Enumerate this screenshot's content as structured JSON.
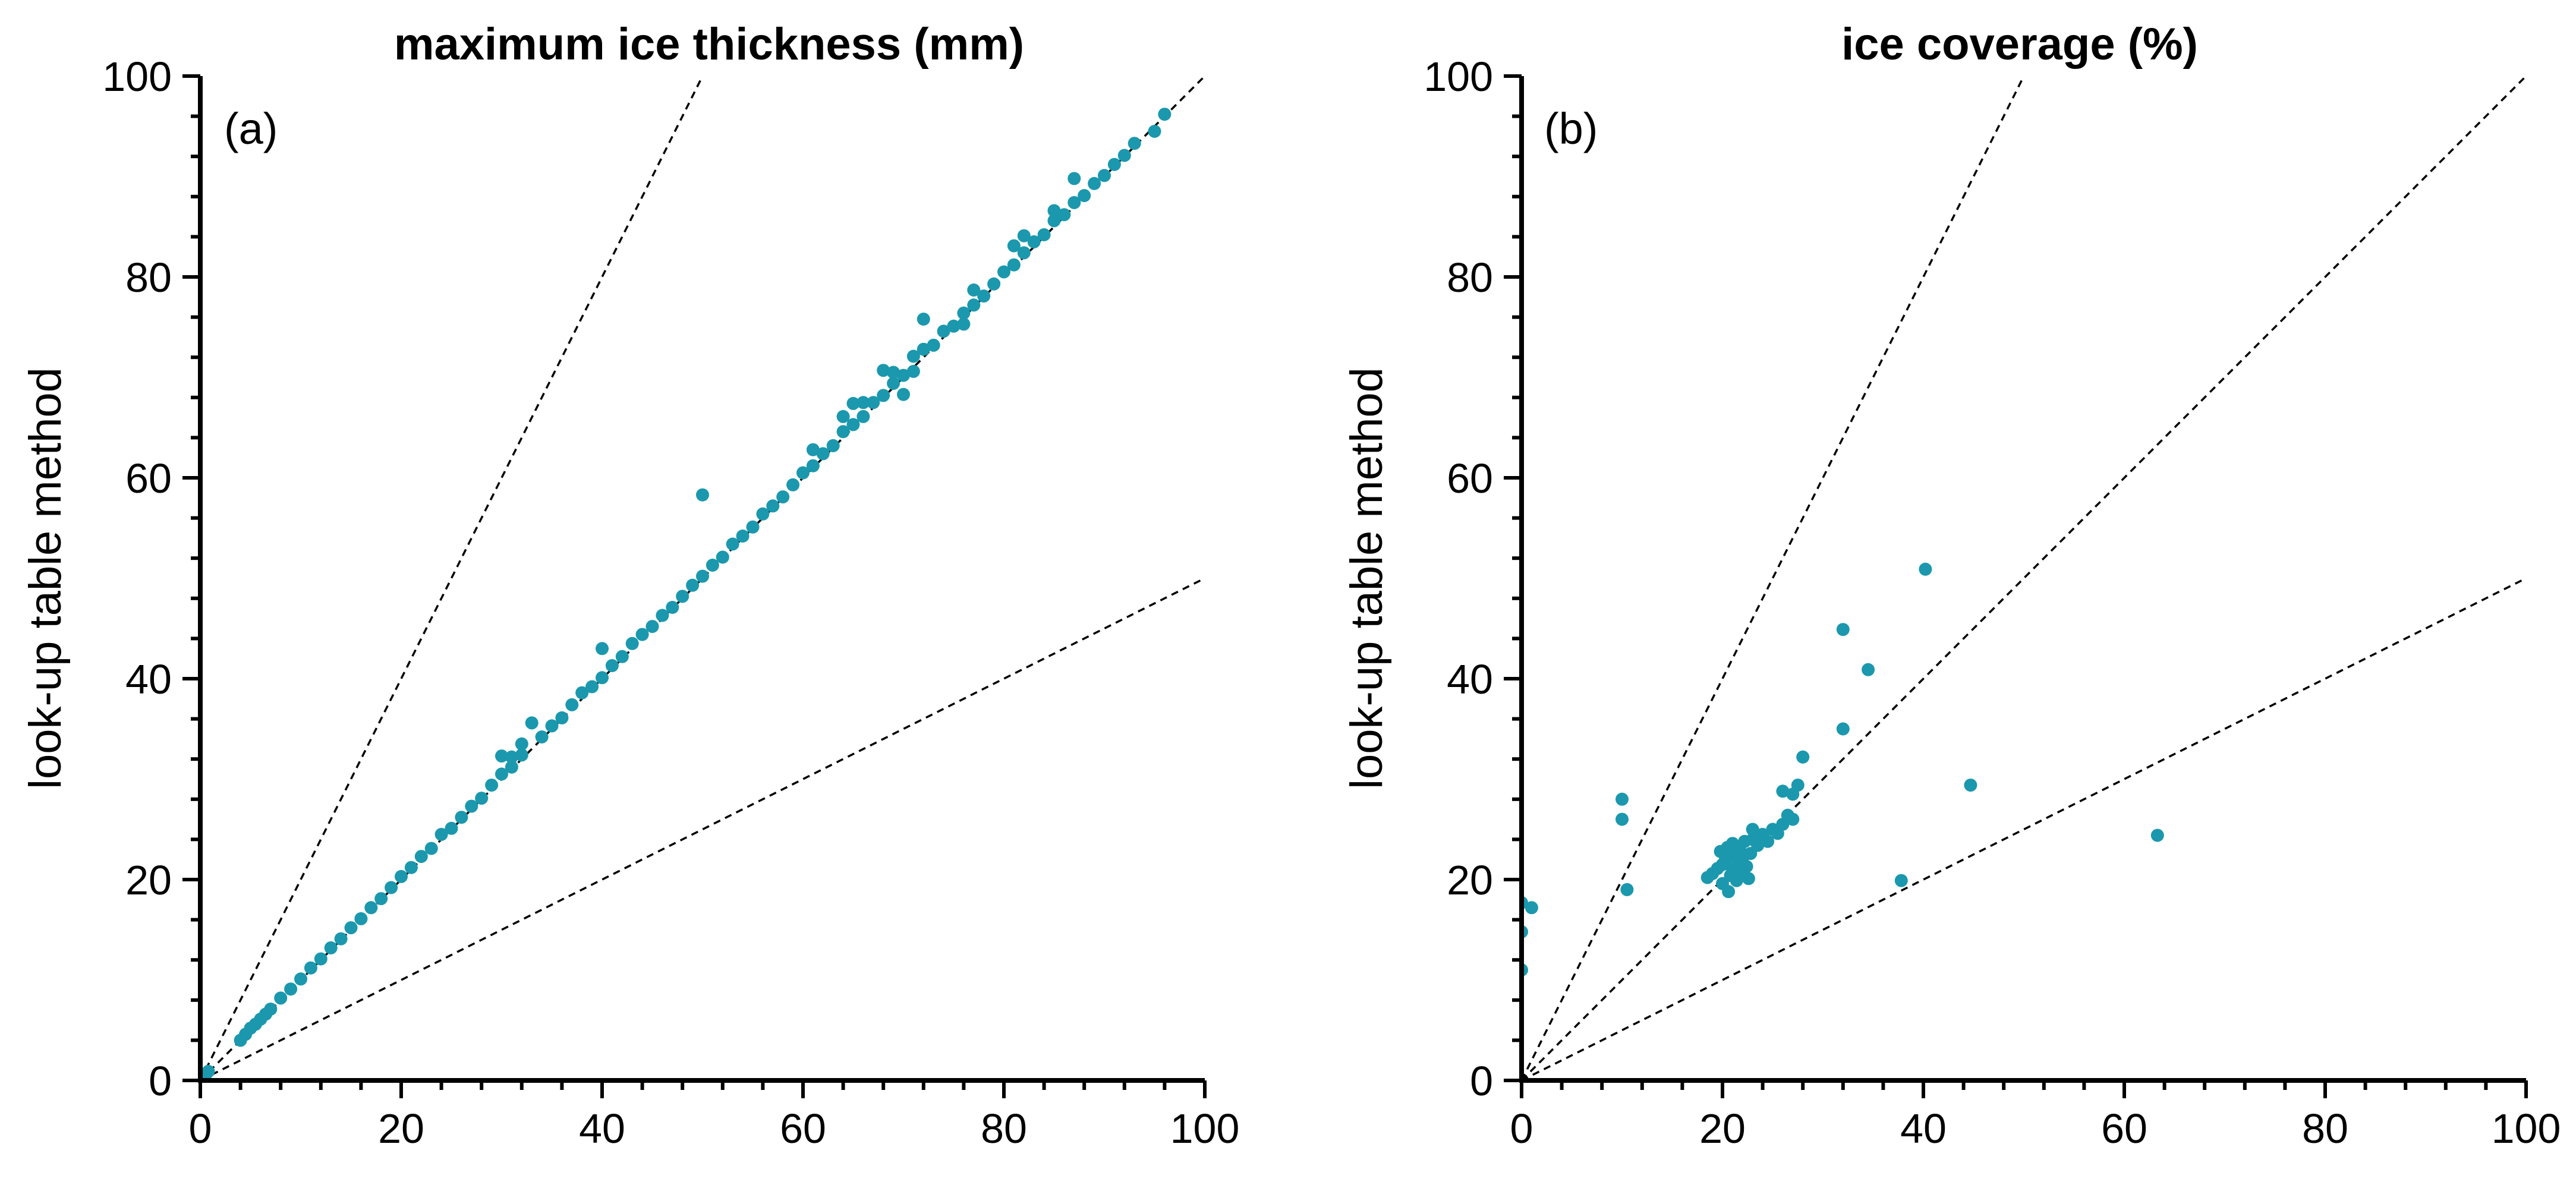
{
  "chart_data": [
    {
      "type": "scatter",
      "panel_label": "(a)",
      "title": "maximum ice thickness (mm)",
      "xlabel": "",
      "ylabel": "look-up table method",
      "xlim": [
        0,
        100
      ],
      "ylim": [
        0,
        100
      ],
      "xticks": [
        "0",
        "20",
        "40",
        "60",
        "80",
        "100"
      ],
      "yticks": [
        "0",
        "20",
        "40",
        "60",
        "80",
        "100"
      ],
      "reference_lines": [
        {
          "name": "2:1",
          "slope": 2
        },
        {
          "name": "1:1",
          "slope": 1
        },
        {
          "name": "1:2",
          "slope": 0.5
        }
      ],
      "series": [
        {
          "name": "points",
          "color": "#1b98ad",
          "points": [
            [
              0,
              0
            ],
            [
              0.3,
              0.4
            ],
            [
              0.5,
              0.5
            ],
            [
              0.8,
              0.9
            ],
            [
              4,
              4
            ],
            [
              4.5,
              4.6
            ],
            [
              5,
              5.2
            ],
            [
              5.5,
              5.6
            ],
            [
              6,
              6.1
            ],
            [
              6.5,
              6.6
            ],
            [
              7,
              7.1
            ],
            [
              8,
              8.2
            ],
            [
              9,
              9.1
            ],
            [
              10,
              10.1
            ],
            [
              11,
              11.2
            ],
            [
              12,
              12.1
            ],
            [
              13,
              13.2
            ],
            [
              14,
              14.1
            ],
            [
              15,
              15.2
            ],
            [
              16,
              16.1
            ],
            [
              17,
              17.2
            ],
            [
              18,
              18.1
            ],
            [
              19,
              19.2
            ],
            [
              20,
              20.3
            ],
            [
              21,
              21.2
            ],
            [
              22,
              22.3
            ],
            [
              23,
              23.1
            ],
            [
              24,
              24.5
            ],
            [
              25,
              25.1
            ],
            [
              26,
              26.2
            ],
            [
              27,
              27.3
            ],
            [
              28,
              28.1
            ],
            [
              29,
              29.4
            ],
            [
              30,
              30.5
            ],
            [
              30,
              32.3
            ],
            [
              31,
              31.2
            ],
            [
              31,
              32.2
            ],
            [
              32,
              32.4
            ],
            [
              32,
              33.5
            ],
            [
              33,
              35.6
            ],
            [
              34,
              34.2
            ],
            [
              35,
              35.3
            ],
            [
              36,
              36.1
            ],
            [
              37,
              37.4
            ],
            [
              38,
              38.6
            ],
            [
              39,
              39.2
            ],
            [
              40,
              40.1
            ],
            [
              40,
              43
            ],
            [
              41,
              41.3
            ],
            [
              42,
              42.2
            ],
            [
              43,
              43.5
            ],
            [
              44,
              44.4
            ],
            [
              45,
              45.2
            ],
            [
              46,
              46.3
            ],
            [
              47,
              47.1
            ],
            [
              48,
              48.2
            ],
            [
              49,
              49.3
            ],
            [
              50,
              50.2
            ],
            [
              50,
              58.3
            ],
            [
              51,
              51.3
            ],
            [
              52,
              52.1
            ],
            [
              53,
              53.4
            ],
            [
              54,
              54.2
            ],
            [
              55,
              55.1
            ],
            [
              56,
              56.4
            ],
            [
              57,
              57.2
            ],
            [
              58,
              58.1
            ],
            [
              59,
              59.3
            ],
            [
              60,
              60.5
            ],
            [
              61,
              61.2
            ],
            [
              61,
              62.8
            ],
            [
              62,
              62.4
            ],
            [
              63,
              63.2
            ],
            [
              64,
              64.6
            ],
            [
              64,
              66.1
            ],
            [
              65,
              65.3
            ],
            [
              65,
              67.4
            ],
            [
              66,
              66.1
            ],
            [
              66,
              67.5
            ],
            [
              67,
              67.5
            ],
            [
              68,
              68.2
            ],
            [
              68,
              70.7
            ],
            [
              69,
              69.4
            ],
            [
              69,
              70.5
            ],
            [
              70,
              70.2
            ],
            [
              70,
              68.3
            ],
            [
              71,
              70.6
            ],
            [
              71,
              72.1
            ],
            [
              72,
              72.8
            ],
            [
              72,
              75.8
            ],
            [
              73,
              73.2
            ],
            [
              74,
              74.6
            ],
            [
              75,
              75.1
            ],
            [
              76,
              75.3
            ],
            [
              76,
              76.4
            ],
            [
              77,
              77.2
            ],
            [
              77,
              78.7
            ],
            [
              78,
              78.1
            ],
            [
              79,
              79.3
            ],
            [
              80,
              80.5
            ],
            [
              81,
              81.2
            ],
            [
              81,
              83.1
            ],
            [
              82,
              82.4
            ],
            [
              82,
              84.1
            ],
            [
              83,
              83.5
            ],
            [
              84,
              84.2
            ],
            [
              85,
              85.6
            ],
            [
              85,
              86.6
            ],
            [
              86,
              86.2
            ],
            [
              87,
              87.4
            ],
            [
              87,
              89.8
            ],
            [
              88,
              88.1
            ],
            [
              89,
              89.3
            ],
            [
              90,
              90.1
            ],
            [
              91,
              91.2
            ],
            [
              92,
              92.1
            ],
            [
              93,
              93.3
            ],
            [
              95,
              94.5
            ],
            [
              96,
              96.2
            ]
          ]
        }
      ]
    },
    {
      "type": "scatter",
      "panel_label": "(b)",
      "title": "ice coverage (%)",
      "xlabel": "",
      "ylabel": "look-up table method",
      "xlim": [
        0,
        100
      ],
      "ylim": [
        0,
        100
      ],
      "xticks": [
        "0",
        "20",
        "40",
        "60",
        "80",
        "100"
      ],
      "yticks": [
        "0",
        "20",
        "40",
        "60",
        "80",
        "100"
      ],
      "reference_lines": [
        {
          "name": "2:1",
          "slope": 2
        },
        {
          "name": "1:1",
          "slope": 1
        },
        {
          "name": "1:2",
          "slope": 0.5
        }
      ],
      "series": [
        {
          "name": "points",
          "color": "#1b98ad",
          "points": [
            [
              0,
              17.7
            ],
            [
              0,
              14.8
            ],
            [
              0,
              11
            ],
            [
              1,
              17.2
            ],
            [
              10,
              28
            ],
            [
              10,
              26
            ],
            [
              10.5,
              19
            ],
            [
              18.5,
              20.2
            ],
            [
              19,
              20.6
            ],
            [
              19.5,
              21.1
            ],
            [
              19.8,
              22.8
            ],
            [
              20,
              19.6
            ],
            [
              20,
              21.5
            ],
            [
              20.3,
              22
            ],
            [
              20.5,
              23.2
            ],
            [
              20.6,
              18.8
            ],
            [
              20.8,
              20.4
            ],
            [
              21,
              21
            ],
            [
              21,
              23.6
            ],
            [
              21.2,
              22.4
            ],
            [
              21.4,
              19.9
            ],
            [
              21.5,
              21.8
            ],
            [
              21.7,
              23
            ],
            [
              21.9,
              20.7
            ],
            [
              22,
              22.2
            ],
            [
              22.2,
              23.8
            ],
            [
              22.4,
              21.3
            ],
            [
              22.6,
              20.1
            ],
            [
              22.8,
              22.6
            ],
            [
              23,
              24
            ],
            [
              23,
              25
            ],
            [
              23.5,
              23.4
            ],
            [
              24,
              24.5
            ],
            [
              24.5,
              23.8
            ],
            [
              25,
              25
            ],
            [
              25.5,
              24.6
            ],
            [
              26,
              25.5
            ],
            [
              26,
              28.8
            ],
            [
              26.5,
              26.4
            ],
            [
              27,
              26
            ],
            [
              27,
              28.5
            ],
            [
              27.5,
              29.4
            ],
            [
              28,
              32.2
            ],
            [
              32,
              44.9
            ],
            [
              32,
              35
            ],
            [
              34.5,
              40.9
            ],
            [
              37.8,
              19.9
            ],
            [
              40.2,
              50.9
            ],
            [
              44.7,
              29.4
            ],
            [
              63.3,
              24.4
            ]
          ]
        }
      ]
    }
  ]
}
